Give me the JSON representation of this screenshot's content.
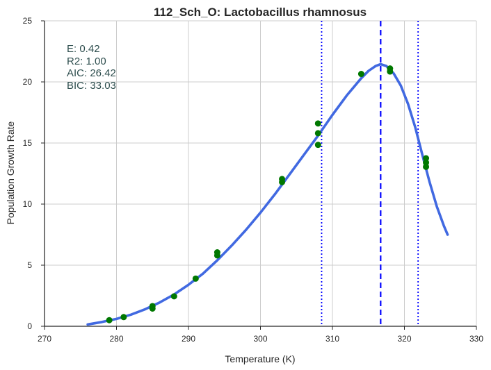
{
  "chart_data": {
    "type": "line",
    "title": "112_Sch_O: Lactobacillus rhamnosus",
    "xlabel": "Temperature (K)",
    "ylabel": "Population Growth Rate",
    "xlim": [
      270,
      330
    ],
    "ylim": [
      0,
      25
    ],
    "xticks": [
      270,
      280,
      290,
      300,
      310,
      320,
      330
    ],
    "yticks": [
      0,
      5,
      10,
      15,
      20,
      25
    ],
    "grid": true,
    "colors": {
      "fit_line": "#4169e1",
      "points": "#007800",
      "vlines": "#0000ff",
      "stats_text": "#2f4f4f",
      "grid": "#cccccc"
    },
    "annotations": [
      "E:  0.42",
      "R2:  1.00",
      "AIC: 26.42",
      "BIC: 33.03"
    ],
    "vlines": [
      {
        "x": 308.5,
        "style": "dotted"
      },
      {
        "x": 316.7,
        "style": "dashed"
      },
      {
        "x": 321.9,
        "style": "dotted"
      }
    ],
    "series": [
      {
        "type": "line",
        "x": [
          276,
          278,
          280,
          282,
          284,
          286,
          288,
          290,
          292,
          294,
          296,
          298,
          300,
          302,
          304,
          306,
          308,
          310,
          312,
          314,
          315,
          316,
          316.7,
          317.5,
          318.5,
          319.5,
          320.5,
          321.5,
          322.5,
          323.5,
          324.5,
          325.5,
          326
        ],
        "values": [
          0.15,
          0.35,
          0.6,
          0.95,
          1.4,
          1.95,
          2.6,
          3.4,
          4.3,
          5.4,
          6.6,
          7.9,
          9.3,
          10.8,
          12.4,
          14.0,
          15.6,
          17.3,
          18.9,
          20.3,
          20.9,
          21.3,
          21.45,
          21.3,
          20.7,
          19.7,
          18.2,
          16.3,
          14.0,
          11.8,
          9.8,
          8.2,
          7.5
        ]
      },
      {
        "type": "scatter",
        "x": [
          279,
          281,
          285,
          285,
          288,
          291,
          294,
          294,
          303,
          303,
          308,
          308,
          308,
          314,
          318,
          318,
          323,
          323,
          323
        ],
        "values": [
          0.5,
          0.75,
          1.45,
          1.65,
          2.45,
          3.9,
          5.8,
          6.05,
          11.8,
          12.05,
          14.85,
          15.8,
          16.6,
          20.65,
          20.85,
          21.1,
          13.05,
          13.4,
          13.75
        ]
      }
    ]
  }
}
